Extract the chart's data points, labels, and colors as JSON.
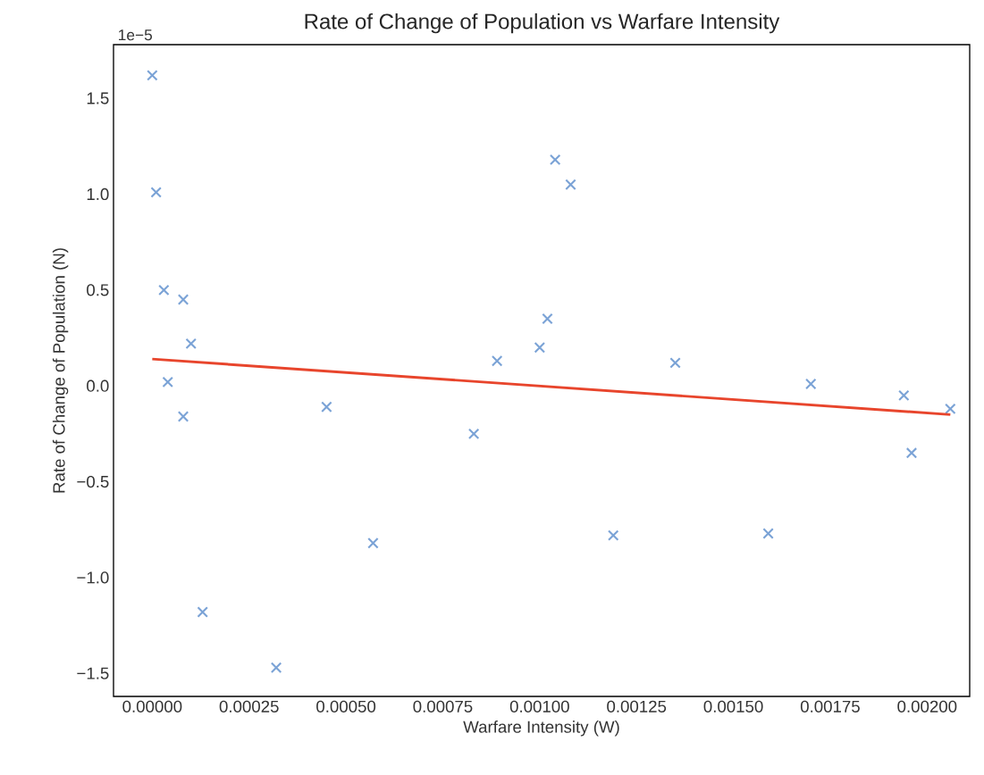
{
  "chart_data": {
    "type": "scatter",
    "title": "Rate of Change of Population vs Warfare Intensity",
    "xlabel": "Warfare Intensity (W)",
    "ylabel": "Rate of Change of Population (N)",
    "annotations": [
      "1e−5"
    ],
    "marker": "cross",
    "grid": false,
    "xlim": [
      -0.0001,
      0.00211
    ],
    "ylim": [
      -1.62,
      1.78
    ],
    "xticks": [
      {
        "value": 0,
        "label": "0.00000"
      },
      {
        "value": 0.00025,
        "label": "0.00025"
      },
      {
        "value": 0.0005,
        "label": "0.00050"
      },
      {
        "value": 0.00075,
        "label": "0.00075"
      },
      {
        "value": 0.001,
        "label": "0.00100"
      },
      {
        "value": 0.00125,
        "label": "0.00125"
      },
      {
        "value": 0.0015,
        "label": "0.00150"
      },
      {
        "value": 0.00175,
        "label": "0.00175"
      },
      {
        "value": 0.002,
        "label": "0.00200"
      }
    ],
    "yticks": [
      {
        "value": -1.5,
        "label": "−1.5"
      },
      {
        "value": -1.0,
        "label": "−1.0"
      },
      {
        "value": -0.5,
        "label": "−0.5"
      },
      {
        "value": 0,
        "label": "0.0"
      },
      {
        "value": 0.5,
        "label": "0.5"
      },
      {
        "value": 1.0,
        "label": "1.0"
      },
      {
        "value": 1.5,
        "label": "1.5"
      }
    ],
    "series": [
      {
        "color": "#7ba3d6",
        "x": [
          0.0,
          1e-05,
          3e-05,
          8e-05,
          0.0001,
          4e-05,
          8e-05,
          0.00013,
          0.00032,
          0.00045,
          0.00057,
          0.00083,
          0.00089,
          0.001,
          0.00102,
          0.00104,
          0.00108,
          0.00119,
          0.00135,
          0.00159,
          0.0017,
          0.00194,
          0.00196,
          0.00206
        ],
        "values": [
          1.62,
          1.01,
          0.5,
          0.45,
          0.22,
          0.02,
          -0.16,
          -1.18,
          -1.47,
          -0.11,
          -0.82,
          -0.25,
          0.13,
          0.2,
          0.35,
          1.18,
          1.05,
          -0.78,
          0.12,
          -0.77,
          0.01,
          -0.05,
          -0.35,
          -0.12
        ]
      },
      {
        "type": "line",
        "color": "#e8452c",
        "marker": "none",
        "line_style": "solid",
        "x": [
          0.0,
          0.00206
        ],
        "values": [
          0.14,
          -0.15
        ]
      }
    ]
  }
}
